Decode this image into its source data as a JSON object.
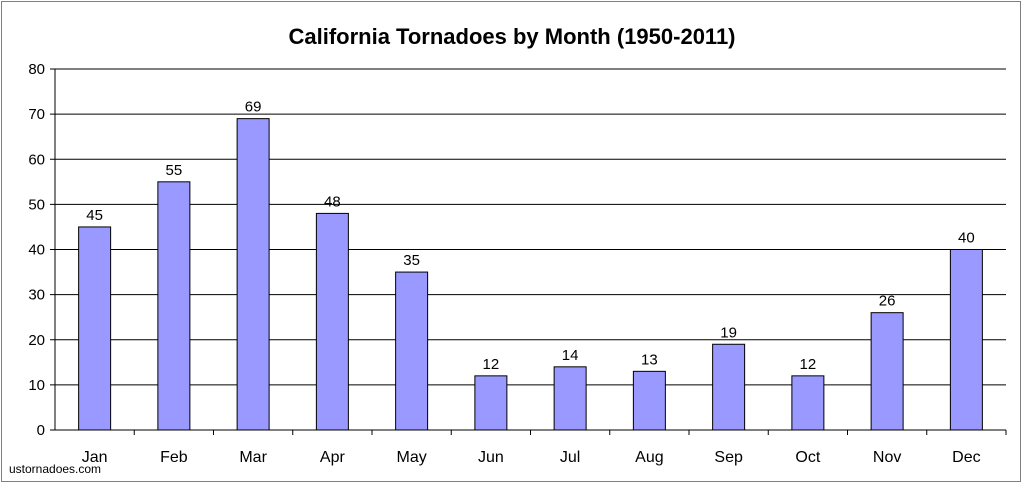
{
  "chart_data": {
    "type": "bar",
    "title": "California Tornadoes by Month (1950-2011)",
    "categories": [
      "Jan",
      "Feb",
      "Mar",
      "Apr",
      "May",
      "Jun",
      "Jul",
      "Aug",
      "Sep",
      "Oct",
      "Nov",
      "Dec"
    ],
    "values": [
      45,
      55,
      69,
      48,
      35,
      12,
      14,
      13,
      19,
      12,
      26,
      40
    ],
    "data_labels": [
      "45",
      "55",
      "69",
      "48",
      "35",
      "12",
      "14",
      "13",
      "19",
      "12",
      "26",
      "40"
    ],
    "y_ticks": [
      "0",
      "10",
      "20",
      "30",
      "40",
      "50",
      "60",
      "70",
      "80"
    ],
    "ylim": [
      0,
      80
    ],
    "xlabel": "",
    "ylabel": "",
    "grid": true,
    "bar_color": "#9999ff",
    "bar_border_color": "#000000",
    "gridline_color": "#000000"
  },
  "watermark": "ustornadoes.com"
}
